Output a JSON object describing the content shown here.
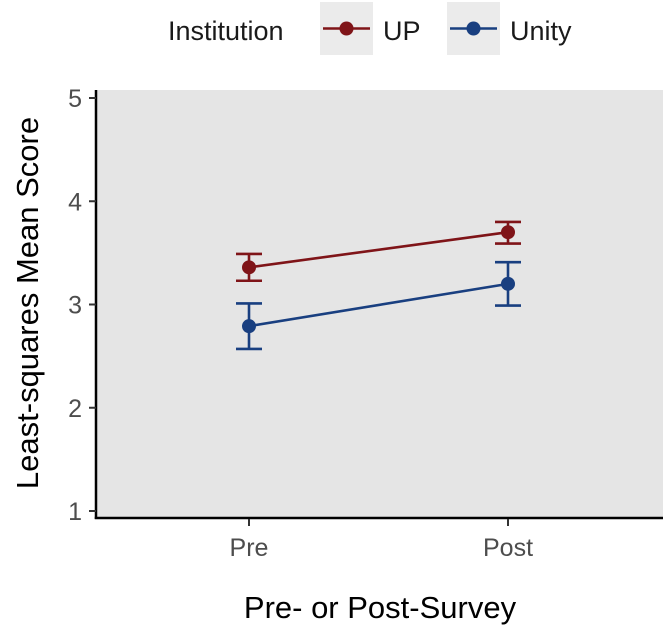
{
  "chart_data": {
    "type": "line",
    "title": "",
    "xlabel": "Pre- or Post-Survey",
    "ylabel": "Least-squares Mean Score",
    "categories": [
      "Pre",
      "Post"
    ],
    "ylim": [
      1,
      5
    ],
    "yticks": [
      "1",
      "2",
      "3",
      "4",
      "5"
    ],
    "grid": false,
    "legend": {
      "title": "Institution",
      "position": "top"
    },
    "series": [
      {
        "name": "UP",
        "color": "#7f1418",
        "values": [
          3.36,
          3.7
        ],
        "error_low": [
          3.23,
          3.59
        ],
        "error_high": [
          3.49,
          3.8
        ]
      },
      {
        "name": "Unity",
        "color": "#193f80",
        "values": [
          2.79,
          3.2
        ],
        "error_low": [
          2.57,
          2.99
        ],
        "error_high": [
          3.01,
          3.41
        ]
      }
    ]
  },
  "panel_color": "#e5e5e5",
  "legend_key_color": "#ebebeb"
}
